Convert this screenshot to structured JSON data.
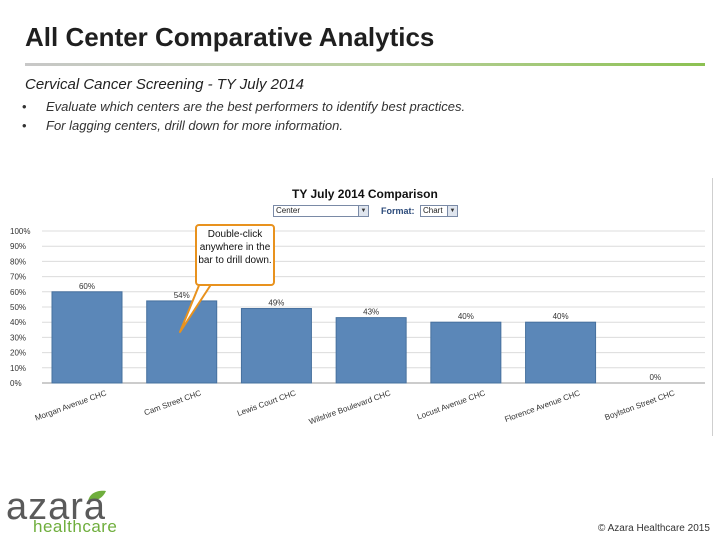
{
  "slide": {
    "title": "All Center Comparative Analytics",
    "subtitle": "Cervical Cancer Screening - TY July 2014",
    "bullets": [
      "Evaluate which centers are the best performers to identify best practices.",
      "For lagging centers, drill down for more information."
    ],
    "bullet_symbol": "•"
  },
  "controls": {
    "chart_title": "TY July 2014 Comparison",
    "center_select_value": "Center",
    "format_label": "Format:",
    "format_select_value": "Chart",
    "dropdown_arrow": "▼"
  },
  "callout": {
    "text": "Double-click anywhere in the bar to drill down."
  },
  "chart_data": {
    "type": "bar",
    "categories": [
      "Morgan Avenue CHC",
      "Cam Street CHC",
      "Lewis Court CHC",
      "Wilshire Boulevard CHC",
      "Locust Avenue CHC",
      "Florence Avenue CHC",
      "Boylston Street CHC"
    ],
    "values": [
      60,
      54,
      49,
      43,
      40,
      40,
      0
    ],
    "data_labels": [
      "60%",
      "54%",
      "49%",
      "43%",
      "40%",
      "40%",
      "0%"
    ],
    "ylim": [
      0,
      100
    ],
    "yticks": [
      "0%",
      "10%",
      "20%",
      "30%",
      "40%",
      "50%",
      "60%",
      "70%",
      "80%",
      "90%",
      "100%"
    ],
    "grid": true,
    "bar_color": "#5b87b8"
  },
  "footer": {
    "logo_top": "azara",
    "logo_bottom": "healthcare",
    "copyright": "© Azara Healthcare 2015"
  }
}
